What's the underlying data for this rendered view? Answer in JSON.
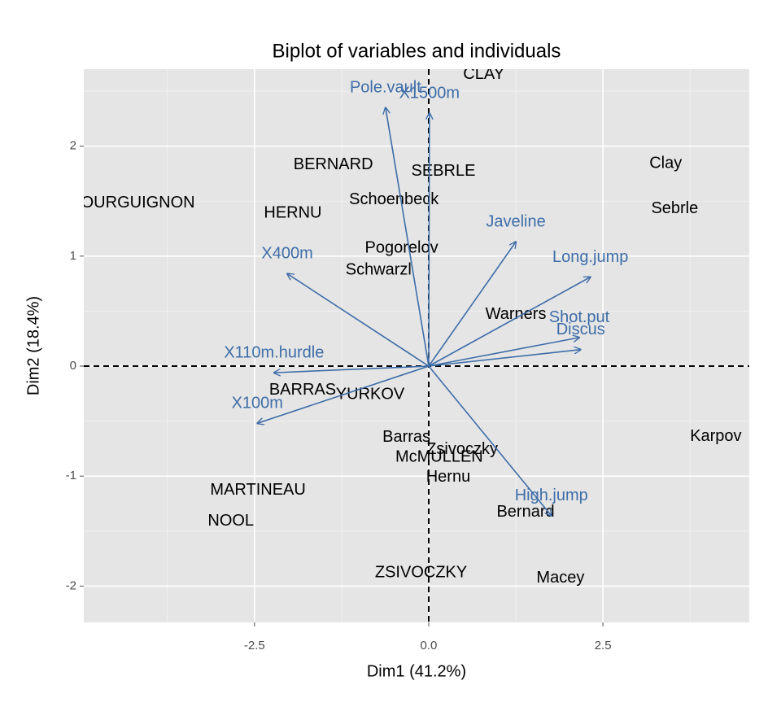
{
  "chart_data": {
    "type": "biplot",
    "title": "Biplot of variables and individuals",
    "xlabel": "Dim1 (41.2%)",
    "ylabel": "Dim2 (18.4%)",
    "xlim": [
      -4.95,
      4.6
    ],
    "ylim": [
      -2.33,
      2.7
    ],
    "xticks": [
      -2.5,
      {
        "value": 0,
        "label": "0.0"
      },
      2.5
    ],
    "yticks": [
      -2,
      -1,
      0,
      1,
      2
    ],
    "grid": true,
    "individuals": {
      "color": "#000000",
      "labels": [
        "CLAY",
        "BERNARD",
        "SEBRLE",
        "BOURGUIGNON",
        "HERNU",
        "Schoenbeck",
        "Clay",
        "Sebrle",
        "Pogorelov",
        "Schwarzl",
        "Warners",
        "BARRAS",
        "YURKOV",
        "Karpov",
        "Barras",
        "Zsivoczky",
        "McMULLEN",
        "Hernu",
        "MARTINEAU",
        "NOOL",
        "Bernard",
        "ZSIVOCZKY",
        "Macey"
      ],
      "x": [
        0.79,
        -1.37,
        0.21,
        -4.25,
        -1.95,
        -0.5,
        3.4,
        3.53,
        -0.39,
        -0.72,
        1.25,
        -1.81,
        -0.84,
        4.12,
        -0.32,
        0.48,
        0.15,
        0.28,
        -2.45,
        -2.84,
        1.39,
        -0.11,
        1.89
      ],
      "y": [
        2.65,
        1.83,
        1.77,
        1.48,
        1.39,
        1.51,
        1.84,
        1.43,
        1.07,
        0.87,
        0.47,
        -0.22,
        -0.26,
        -0.64,
        -0.65,
        -0.76,
        -0.83,
        -1.01,
        -1.13,
        -1.41,
        -1.33,
        -1.88,
        -1.93
      ]
    },
    "variables": {
      "color": "#3E6DA8",
      "labels": [
        "X100m",
        "Long.jump",
        "Shot.put",
        "High.jump",
        "X400m",
        "X110m.hurdle",
        "Discus",
        "Pole.vault",
        "Javeline",
        "X1500m"
      ],
      "x": [
        -2.46,
        2.32,
        2.16,
        1.76,
        -2.03,
        -2.22,
        2.18,
        -0.62,
        1.25,
        0.01
      ],
      "y": [
        -0.52,
        0.81,
        0.26,
        -1.36,
        0.84,
        -0.06,
        0.15,
        2.35,
        1.13,
        2.3
      ]
    }
  }
}
